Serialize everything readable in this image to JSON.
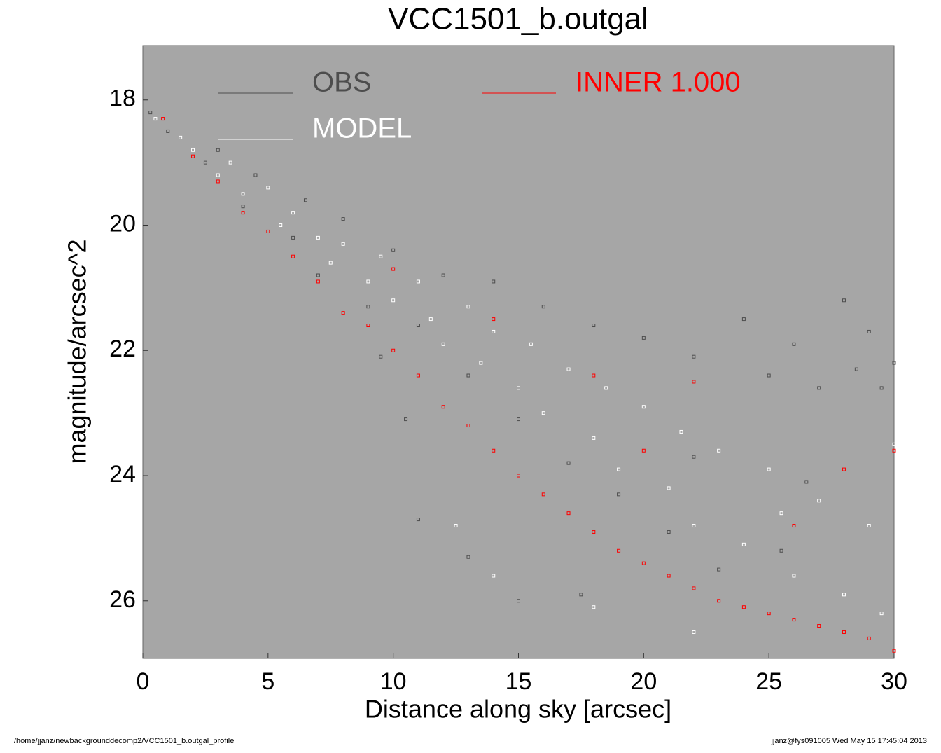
{
  "chart_data": {
    "type": "scatter",
    "title": "VCC1501_b.outgal",
    "xlabel": "Distance along sky [arcsec]",
    "ylabel": "magnitude/arcsec^2",
    "xlim": [
      0,
      30
    ],
    "ylim": [
      26.92,
      17.13
    ],
    "xticks": [
      0,
      5,
      10,
      15,
      20,
      25,
      30
    ],
    "yticks": [
      18,
      20,
      22,
      24,
      26
    ],
    "background": "#a6a6a6",
    "series": [
      {
        "name": "OBS",
        "color": "#4d4d4d",
        "x": [
          0.3,
          1,
          2.5,
          3,
          4,
          4.5,
          6,
          6.5,
          7,
          8,
          9,
          9.5,
          10,
          10.5,
          11,
          11,
          12,
          13,
          13,
          14,
          15,
          15,
          16,
          17,
          17.5,
          18,
          19,
          20,
          21,
          22,
          23,
          24,
          25,
          25.5,
          26,
          27,
          28,
          28.5,
          29,
          29.5,
          30,
          26.5,
          22
        ],
        "values": [
          18.2,
          18.5,
          19.0,
          18.8,
          19.7,
          19.2,
          20.2,
          19.6,
          20.8,
          19.9,
          21.3,
          22.1,
          20.4,
          23.1,
          21.6,
          24.7,
          20.8,
          22.4,
          25.3,
          20.9,
          23.1,
          26.0,
          21.3,
          23.8,
          25.9,
          21.6,
          24.3,
          21.8,
          24.9,
          22.1,
          25.5,
          21.5,
          22.4,
          25.2,
          21.9,
          22.6,
          21.2,
          22.3,
          21.7,
          22.6,
          22.2,
          24.1,
          23.7
        ]
      },
      {
        "name": "MODEL",
        "color": "#ffffff",
        "x": [
          0.5,
          1.5,
          2,
          3,
          3.5,
          4,
          5,
          5.5,
          6,
          7,
          7.5,
          8,
          9,
          9.5,
          10,
          11,
          11.5,
          12,
          13,
          13.5,
          14,
          15,
          15.5,
          16,
          17,
          18,
          18.5,
          19,
          20,
          21,
          21.5,
          22,
          23,
          24,
          25,
          25.5,
          26,
          27,
          28,
          29,
          29.5,
          30,
          14,
          18,
          22,
          12.5
        ],
        "values": [
          18.3,
          18.6,
          18.8,
          19.2,
          19.0,
          19.5,
          19.4,
          20.0,
          19.8,
          20.2,
          20.6,
          20.3,
          20.9,
          20.5,
          21.2,
          20.9,
          21.5,
          21.9,
          21.3,
          22.2,
          21.7,
          22.6,
          21.9,
          23.0,
          22.3,
          23.4,
          22.6,
          23.9,
          22.9,
          24.2,
          23.3,
          24.8,
          23.6,
          25.1,
          23.9,
          24.6,
          25.6,
          24.4,
          25.9,
          24.8,
          26.2,
          23.5,
          25.6,
          26.1,
          26.5,
          24.8
        ]
      },
      {
        "name": "INNER  1.000",
        "color": "#ff0000",
        "x": [
          0.8,
          2,
          3,
          4,
          5,
          6,
          7,
          8,
          9,
          10,
          11,
          12,
          13,
          14,
          15,
          16,
          17,
          18,
          19,
          20,
          21,
          22,
          23,
          24,
          25,
          26,
          27,
          28,
          29,
          30,
          10,
          14,
          18,
          22,
          26,
          28,
          30,
          20
        ],
        "values": [
          18.3,
          18.9,
          19.3,
          19.8,
          20.1,
          20.5,
          20.9,
          21.4,
          21.6,
          22.0,
          22.4,
          22.9,
          23.2,
          23.6,
          24.0,
          24.3,
          24.6,
          24.9,
          25.2,
          25.4,
          25.6,
          25.8,
          26.0,
          26.1,
          26.2,
          26.3,
          26.4,
          26.5,
          26.6,
          26.8,
          20.7,
          21.5,
          22.4,
          22.5,
          24.8,
          23.9,
          23.6,
          23.6
        ]
      }
    ]
  },
  "footer": {
    "left": "/home/jjanz/newbackgrounddecomp2/VCC1501_b.outgal_profile",
    "right": "jjanz@fys091005  Wed May 15 17:45:04 2013"
  }
}
